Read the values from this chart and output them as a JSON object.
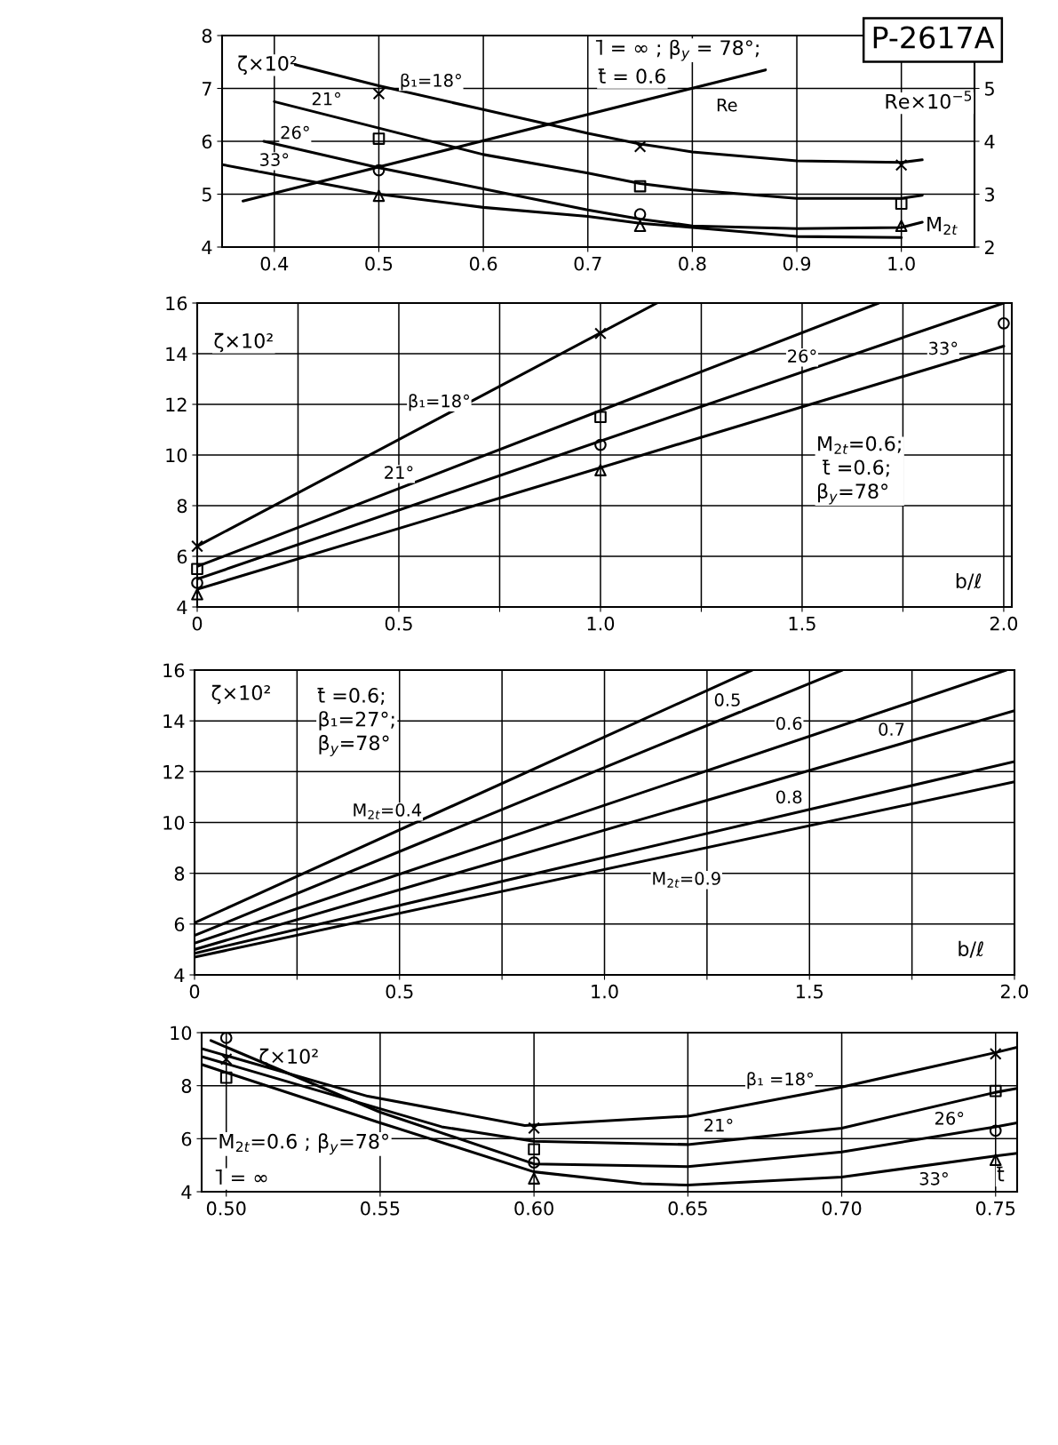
{
  "chart_data": [
    {
      "type": "line",
      "xlabel": "M$_{2t}$",
      "ylabel": "ζ×10²",
      "y2label": "Re×10$^{−5}$",
      "xlim": [
        0.35,
        1.07
      ],
      "xticks": [
        0.4,
        0.5,
        0.6,
        0.7,
        0.8,
        0.9,
        {
          "value": 1,
          "label": "1.0"
        }
      ],
      "ylim": [
        4,
        8
      ],
      "yticks": [
        4,
        5,
        6,
        7,
        8
      ],
      "y2lim": [
        2,
        6
      ],
      "y2ticks": [
        2,
        3,
        4,
        5
      ],
      "grid": true,
      "legend": false,
      "series": [
        {
          "name": "β₁=18°",
          "color": "#000000",
          "x": [
            0.42,
            0.5,
            0.6,
            0.7,
            0.75,
            0.8,
            0.9,
            1.0,
            1.02
          ],
          "values": [
            7.45,
            7.05,
            6.6,
            6.15,
            5.95,
            5.8,
            5.63,
            5.6,
            5.65
          ]
        },
        {
          "name": "21°",
          "color": "#000000",
          "x": [
            0.4,
            0.5,
            0.6,
            0.7,
            0.75,
            0.8,
            0.9,
            1.0,
            1.02
          ],
          "values": [
            6.75,
            6.25,
            5.75,
            5.4,
            5.2,
            5.08,
            4.92,
            4.92,
            4.98
          ]
        },
        {
          "name": "26°",
          "color": "#000000",
          "x": [
            0.39,
            0.5,
            0.6,
            0.7,
            0.75,
            0.8,
            0.9,
            1.0,
            1.02
          ],
          "values": [
            6.0,
            5.5,
            5.1,
            4.7,
            4.53,
            4.4,
            4.35,
            4.37,
            4.47
          ]
        },
        {
          "name": "33°",
          "color": "#000000",
          "x": [
            0.35,
            0.5,
            0.6,
            0.7,
            0.75,
            0.8,
            0.9,
            1.0
          ],
          "values": [
            5.56,
            5.0,
            4.75,
            4.58,
            4.45,
            4.37,
            4.2,
            4.18
          ]
        },
        {
          "name": "Re",
          "color": "#000000",
          "axis": "y2",
          "x": [
            0.37,
            0.87
          ],
          "values": [
            2.87,
            5.35
          ]
        },
        {
          "type": "scatter",
          "marker": "cross",
          "color": "#000000",
          "x": [
            0.5,
            0.75,
            1.0
          ],
          "values": [
            6.9,
            5.9,
            5.55
          ]
        },
        {
          "type": "scatter",
          "marker": "square",
          "color": "#000000",
          "x": [
            0.5,
            0.75,
            1.0
          ],
          "values": [
            6.05,
            5.15,
            4.82
          ]
        },
        {
          "type": "scatter",
          "marker": "circle",
          "color": "#000000",
          "x": [
            0.5,
            0.75
          ],
          "values": [
            5.45,
            4.62
          ]
        },
        {
          "type": "scatter",
          "marker": "triangle",
          "color": "#000000",
          "x": [
            0.5,
            0.75,
            1.0
          ],
          "values": [
            4.97,
            4.4,
            4.4
          ]
        }
      ],
      "annotations": [
        "l̄ = ∞ ; β$_{y}$ = 78°;",
        "t̄ = 0.6",
        "P-2617A"
      ]
    },
    {
      "type": "line",
      "xlabel": "b/ℓ",
      "ylabel": "ζ×10²",
      "xlim": [
        0,
        2.02
      ],
      "xticks": [
        0,
        {
          "value": 0.25,
          "label": null
        },
        0.5,
        {
          "value": 0.75,
          "label": null
        },
        {
          "value": 1,
          "label": "1.0"
        },
        {
          "value": 1.25,
          "label": null
        },
        1.5,
        {
          "value": 1.75,
          "label": null
        },
        {
          "value": 2,
          "label": "2.0"
        }
      ],
      "ylim": [
        4,
        16
      ],
      "yticks": [
        4,
        6,
        8,
        10,
        12,
        14,
        16
      ],
      "grid": true,
      "legend": false,
      "series": [
        {
          "name": "β₁=18°",
          "color": "#000000",
          "x": [
            0,
            1.14
          ],
          "values": [
            6.4,
            16
          ]
        },
        {
          "name": "21°",
          "color": "#000000",
          "x": [
            0,
            1.69
          ],
          "values": [
            5.6,
            16
          ]
        },
        {
          "name": "26°",
          "color": "#000000",
          "x": [
            0,
            2.0
          ],
          "values": [
            5.1,
            16
          ]
        },
        {
          "name": "33°",
          "color": "#000000",
          "x": [
            0,
            2.0
          ],
          "values": [
            4.7,
            14.3
          ]
        },
        {
          "type": "scatter",
          "marker": "cross",
          "color": "#000000",
          "x": [
            0,
            1.0
          ],
          "values": [
            6.4,
            14.8
          ]
        },
        {
          "type": "scatter",
          "marker": "square",
          "color": "#000000",
          "x": [
            0,
            1.0
          ],
          "values": [
            5.5,
            11.5
          ]
        },
        {
          "type": "scatter",
          "marker": "circle",
          "color": "#000000",
          "x": [
            0,
            1.0,
            2.0
          ],
          "values": [
            4.95,
            10.4,
            15.2
          ]
        },
        {
          "type": "scatter",
          "marker": "triangle",
          "color": "#000000",
          "x": [
            0,
            1.0
          ],
          "values": [
            4.5,
            9.4
          ]
        }
      ],
      "annotations": [
        "M$_{2t}$=0.6;\n t̄ =0.6;\nβ$_{y}$=78°"
      ]
    },
    {
      "type": "line",
      "xlabel": "b/ℓ",
      "ylabel": "ζ×10²",
      "xlim": [
        0,
        2.0
      ],
      "xticks": [
        0,
        {
          "value": 0.25,
          "label": null
        },
        0.5,
        {
          "value": 0.75,
          "label": null
        },
        {
          "value": 1,
          "label": "1.0"
        },
        {
          "value": 1.25,
          "label": null
        },
        1.5,
        {
          "value": 1.75,
          "label": null
        },
        {
          "value": 2,
          "label": "2.0"
        }
      ],
      "ylim": [
        4,
        16
      ],
      "yticks": [
        4,
        6,
        8,
        10,
        12,
        14,
        16
      ],
      "grid": true,
      "legend": false,
      "series": [
        {
          "name": "M$_{2t}$=0.4",
          "color": "#000000",
          "x": [
            0,
            1.36
          ],
          "values": [
            6.05,
            16
          ]
        },
        {
          "name": "0.5",
          "color": "#000000",
          "x": [
            0,
            1.58
          ],
          "values": [
            5.55,
            16
          ]
        },
        {
          "name": "0.6",
          "color": "#000000",
          "x": [
            0,
            1.98
          ],
          "values": [
            5.25,
            16
          ]
        },
        {
          "name": "0.7",
          "color": "#000000",
          "x": [
            0,
            2.0
          ],
          "values": [
            5.0,
            14.4
          ]
        },
        {
          "name": "0.8",
          "color": "#000000",
          "x": [
            0,
            2.0
          ],
          "values": [
            4.85,
            12.4
          ]
        },
        {
          "name": "M$_{2t}$=0.9",
          "color": "#000000",
          "x": [
            0,
            2.0
          ],
          "values": [
            4.7,
            11.6
          ]
        }
      ],
      "annotations": [
        "t̄ =0.6;\nβ₁=27°;\nβ$_{y}$=78°"
      ]
    },
    {
      "type": "line",
      "xlabel": "t̄",
      "ylabel": "ζ×10²",
      "xlim": [
        0.492,
        0.757
      ],
      "xticks": [
        {
          "value": 0.5,
          "label": "0.50"
        },
        {
          "value": 0.55,
          "label": "0.55"
        },
        {
          "value": 0.6,
          "label": "0.60"
        },
        {
          "value": 0.65,
          "label": "0.65"
        },
        {
          "value": 0.7,
          "label": "0.70"
        },
        {
          "value": 0.75,
          "label": "0.75"
        }
      ],
      "ylim": [
        4,
        10
      ],
      "yticks": [
        4,
        6,
        8,
        10
      ],
      "grid": true,
      "legend": false,
      "series": [
        {
          "name": "β₁ =18°",
          "color": "#000000",
          "x": [
            0.492,
            0.546,
            0.597,
            0.65,
            0.7,
            0.75,
            0.757
          ],
          "values": [
            9.4,
            7.6,
            6.5,
            6.85,
            7.95,
            9.25,
            9.45
          ]
        },
        {
          "name": "21°",
          "color": "#000000",
          "x": [
            0.492,
            0.57,
            0.6,
            0.65,
            0.7,
            0.75,
            0.757
          ],
          "values": [
            9.1,
            6.45,
            5.9,
            5.78,
            6.4,
            7.75,
            7.9
          ]
        },
        {
          "name": "26°",
          "color": "#000000",
          "x": [
            0.495,
            0.55,
            0.6,
            0.65,
            0.7,
            0.75,
            0.757
          ],
          "values": [
            9.7,
            7.0,
            5.05,
            4.95,
            5.5,
            6.45,
            6.6
          ]
        },
        {
          "name": "33°",
          "color": "#000000",
          "x": [
            0.492,
            0.55,
            0.6,
            0.635,
            0.65,
            0.7,
            0.75,
            0.757
          ],
          "values": [
            8.8,
            6.6,
            4.75,
            4.3,
            4.25,
            4.55,
            5.35,
            5.45
          ]
        },
        {
          "type": "scatter",
          "marker": "cross",
          "color": "#000000",
          "x": [
            0.5,
            0.6,
            0.75
          ],
          "values": [
            9.0,
            6.4,
            9.2
          ]
        },
        {
          "type": "scatter",
          "marker": "square",
          "color": "#000000",
          "x": [
            0.5,
            0.6,
            0.75
          ],
          "values": [
            8.3,
            5.6,
            7.8
          ]
        },
        {
          "type": "scatter",
          "marker": "circle",
          "color": "#000000",
          "x": [
            0.5,
            0.6,
            0.75
          ],
          "values": [
            9.8,
            5.1,
            6.3
          ]
        },
        {
          "type": "scatter",
          "marker": "triangle",
          "color": "#000000",
          "x": [
            0.6,
            0.75
          ],
          "values": [
            4.5,
            5.2
          ]
        }
      ],
      "annotations": [
        "M$_{2t}$=0.6 ; β$_{y}$=78°",
        "l̄ = ∞"
      ]
    }
  ]
}
